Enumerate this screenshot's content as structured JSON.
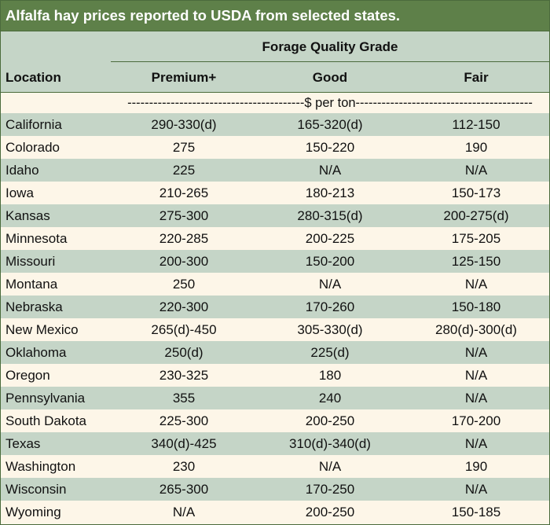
{
  "title": "Alfalfa hay prices reported to USDA from selected states.",
  "header": {
    "group": "Forage Quality Grade",
    "location": "Location",
    "premium": "Premium+",
    "good": "Good",
    "fair": "Fair"
  },
  "unit_row": "-----------------------------------------$ per ton-----------------------------------------",
  "rows": [
    {
      "location": "California",
      "premium": "290-330(d)",
      "good": "165-320(d)",
      "fair": "112-150"
    },
    {
      "location": "Colorado",
      "premium": "275",
      "good": "150-220",
      "fair": "190"
    },
    {
      "location": "Idaho",
      "premium": "225",
      "good": "N/A",
      "fair": "N/A"
    },
    {
      "location": "Iowa",
      "premium": "210-265",
      "good": "180-213",
      "fair": "150-173"
    },
    {
      "location": "Kansas",
      "premium": "275-300",
      "good": "280-315(d)",
      "fair": "200-275(d)"
    },
    {
      "location": "Minnesota",
      "premium": "220-285",
      "good": "200-225",
      "fair": "175-205"
    },
    {
      "location": "Missouri",
      "premium": "200-300",
      "good": "150-200",
      "fair": "125-150"
    },
    {
      "location": "Montana",
      "premium": "250",
      "good": "N/A",
      "fair": "N/A"
    },
    {
      "location": "Nebraska",
      "premium": "220-300",
      "good": "170-260",
      "fair": "150-180"
    },
    {
      "location": "New Mexico",
      "premium": "265(d)-450",
      "good": "305-330(d)",
      "fair": "280(d)-300(d)"
    },
    {
      "location": "Oklahoma",
      "premium": "250(d)",
      "good": "225(d)",
      "fair": "N/A"
    },
    {
      "location": "Oregon",
      "premium": "230-325",
      "good": "180",
      "fair": "N/A"
    },
    {
      "location": "Pennsylvania",
      "premium": "355",
      "good": "240",
      "fair": "N/A"
    },
    {
      "location": "South Dakota",
      "premium": "225-300",
      "good": "200-250",
      "fair": "170-200"
    },
    {
      "location": "Texas",
      "premium": "340(d)-425",
      "good": "310(d)-340(d)",
      "fair": "N/A"
    },
    {
      "location": "Washington",
      "premium": "230",
      "good": "N/A",
      "fair": "190"
    },
    {
      "location": "Wisconsin",
      "premium": "265-300",
      "good": "170-250",
      "fair": "N/A"
    },
    {
      "location": "Wyoming",
      "premium": "N/A",
      "good": "200-250",
      "fair": "150-185"
    }
  ]
}
